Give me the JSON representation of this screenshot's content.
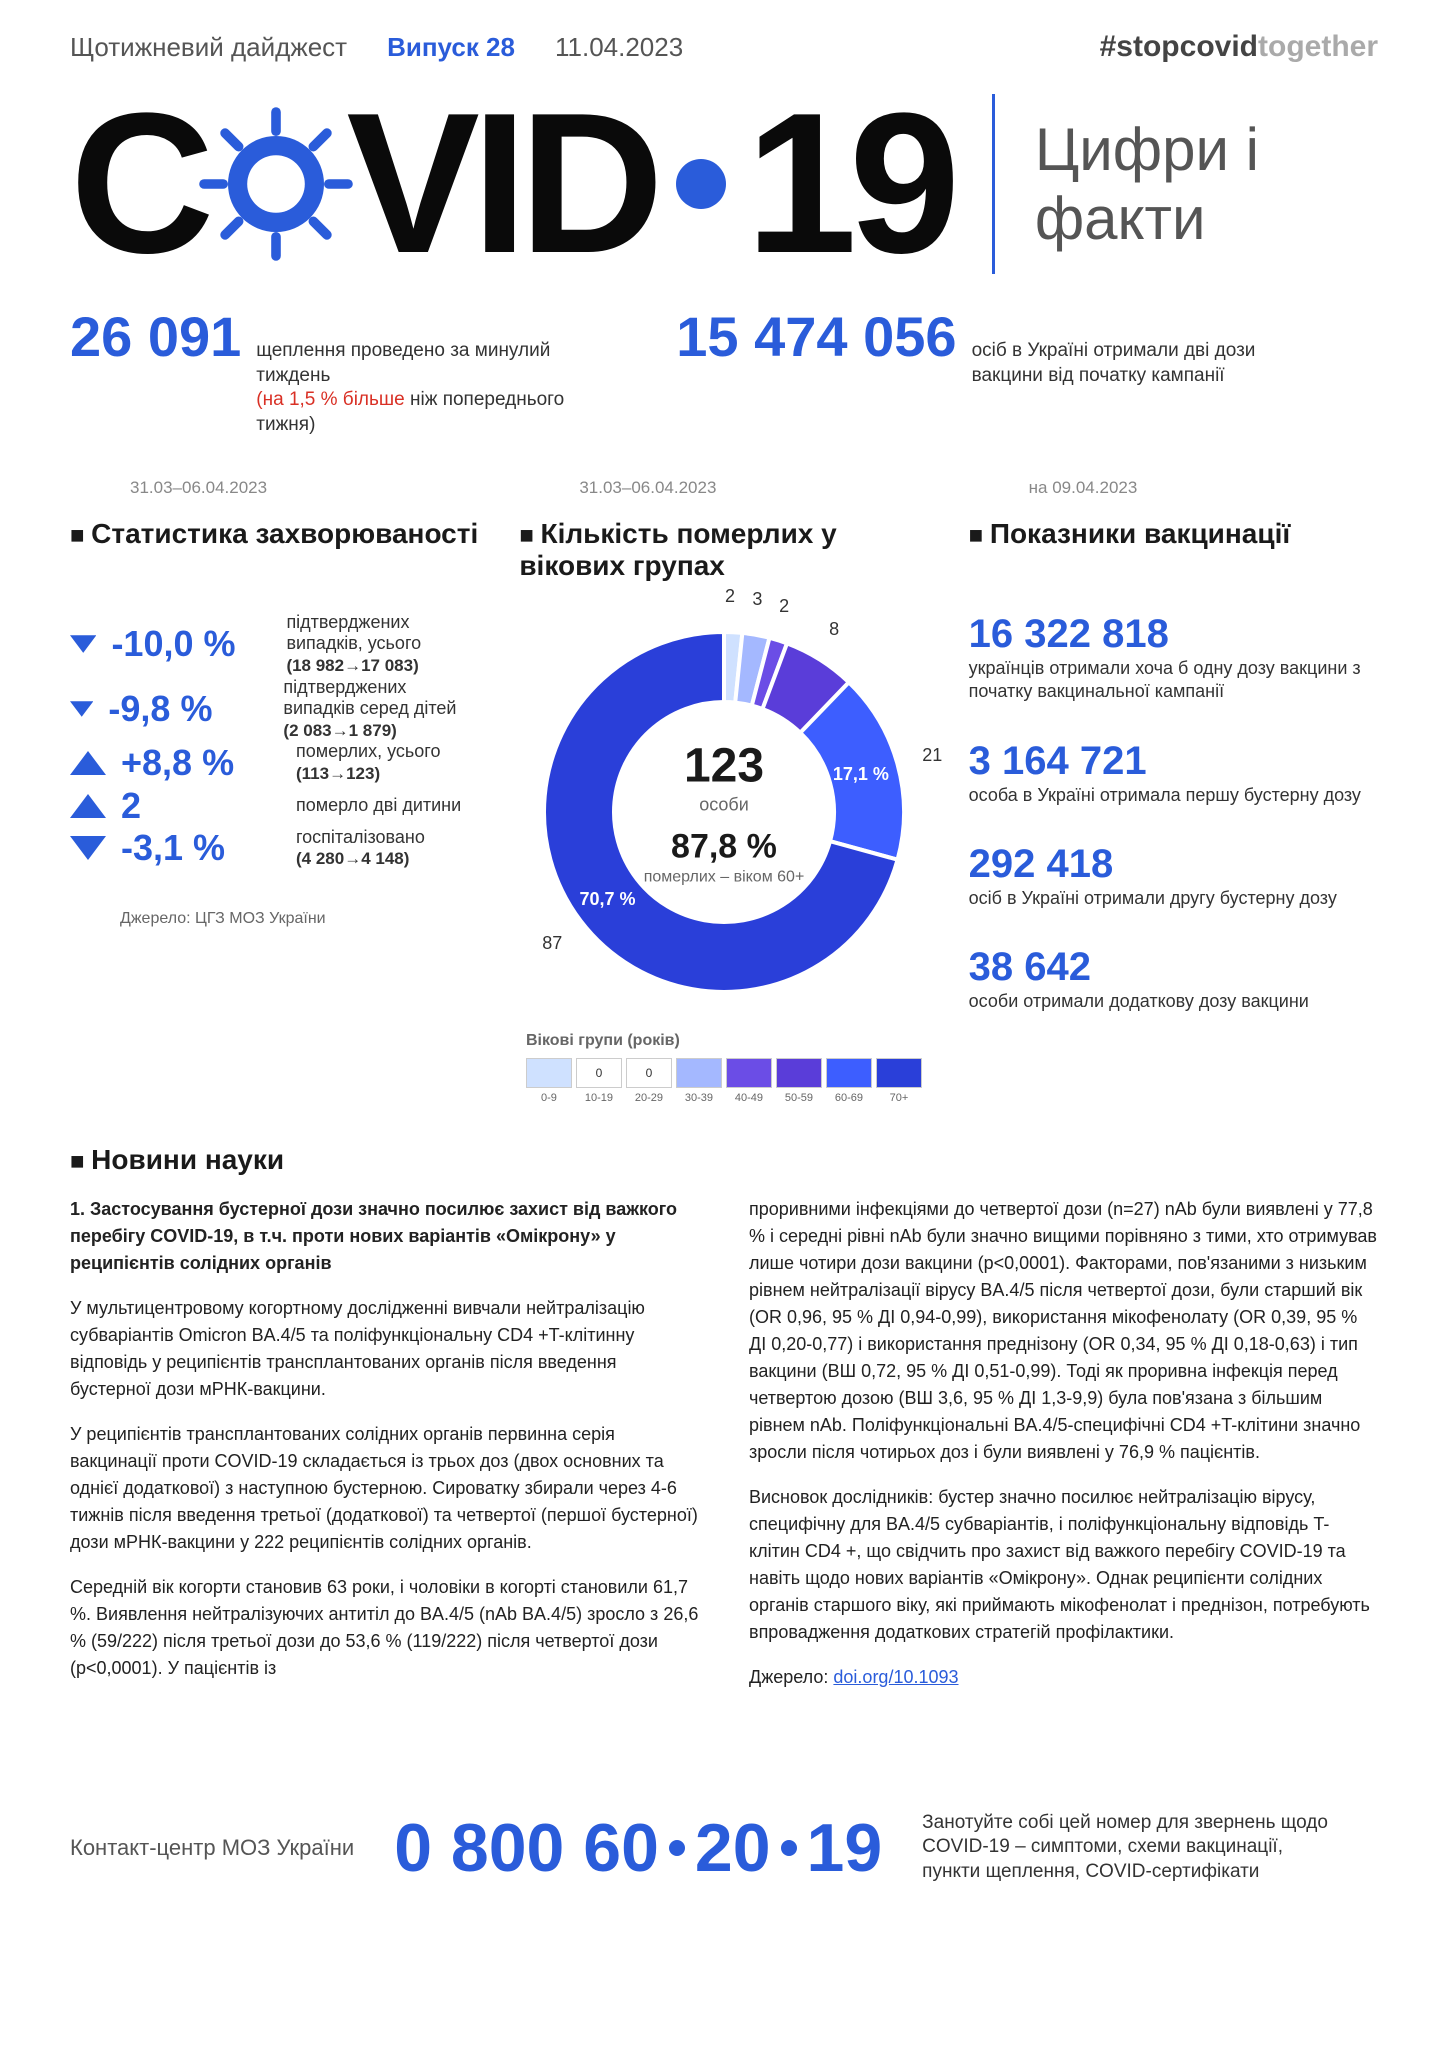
{
  "header": {
    "digest": "Щотижневий дайджест",
    "issue": "Випуск 28",
    "date": "11.04.2023",
    "hashtag_strong": "#stopcovid",
    "hashtag_light": "together"
  },
  "logo": {
    "text_c": "C",
    "text_vid": "VID",
    "text_19": "19",
    "gear_color": "#2a5cda",
    "subtitle": "Цифри і факти"
  },
  "top_stats": [
    {
      "number": "26 091",
      "text": "щеплення проведено за минулий тиждень",
      "subtext_red": "(на 1,5 % більше",
      "subtext": " ніж попереднього тижня)"
    },
    {
      "number": "15 474 056",
      "text": "осіб в Україні отримали дві дози вакцини від початку кампанії"
    }
  ],
  "section_dates": [
    "31.03–06.04.2023",
    "31.03–06.04.2023",
    "на 09.04.2023"
  ],
  "section_headers": [
    "Статистика захворюваності",
    "Кількість померлих у вікових групах",
    "Показники вакцинації"
  ],
  "morbidity": {
    "items": [
      {
        "direction": "down",
        "value": "-10,0 %",
        "color": "#2a5cda",
        "desc": "підтверджених випадків, усього",
        "sub": "(18 982→17 083)"
      },
      {
        "direction": "down",
        "value": "-9,8 %",
        "color": "#2a5cda",
        "desc": "підтверджених випадків серед дітей",
        "sub": "(2 083→1 879)"
      },
      {
        "direction": "up",
        "value": "+8,8 %",
        "color": "#2a5cda",
        "desc": "померлих, усього",
        "sub": "(113→123)"
      },
      {
        "direction": "up",
        "value": "2",
        "color": "#2a5cda",
        "desc": "померло дві дитини",
        "sub": ""
      },
      {
        "direction": "down",
        "value": "-3,1 %",
        "color": "#2a5cda",
        "desc": "госпіталізовано",
        "sub": "(4 280→4 148)"
      }
    ],
    "source": "Джерело: ЦГЗ МОЗ України"
  },
  "donut": {
    "total": "123",
    "total_label": "особи",
    "center_pct": "87,8 %",
    "center_sub": "померлих – віком 60+",
    "slices": [
      {
        "color": "#cfe1ff",
        "value": 2,
        "label": "2"
      },
      {
        "color": "#e8e8e8",
        "value": 0,
        "label": "0"
      },
      {
        "color": "#e8e8e8",
        "value": 0,
        "label": "0"
      },
      {
        "color": "#a4b8ff",
        "value": 3,
        "label": "3"
      },
      {
        "color": "#6b4de6",
        "value": 2,
        "label": "2"
      },
      {
        "color": "#5a3dd9",
        "value": 8,
        "label": "8"
      },
      {
        "color": "#3d5eff",
        "value": 21,
        "pct_label": "17,1 %",
        "label": "21"
      },
      {
        "color": "#2a3fd9",
        "value": 87,
        "pct_label": "70,7 %",
        "label": "87"
      }
    ],
    "legend_title": "Вікові групи (років)",
    "age_groups": [
      "0-9",
      "10-19",
      "20-29",
      "30-39",
      "40-49",
      "50-59",
      "60-69",
      "70+"
    ],
    "legend_colors": [
      "#cfe1ff",
      "#ffffff",
      "#ffffff",
      "#a4b8ff",
      "#6b4de6",
      "#5a3dd9",
      "#3d5eff",
      "#2a3fd9"
    ],
    "legend_vals": [
      "",
      "0",
      "0",
      "",
      "",
      "",
      "",
      ""
    ]
  },
  "vaccination": [
    {
      "number": "16 322 818",
      "text": "українців отримали хоча б одну дозу вакцини з початку вакцинальної кампанії"
    },
    {
      "number": "3 164 721",
      "text": "особа в Україні отримала першу бустерну дозу"
    },
    {
      "number": "292 418",
      "text": "осіб в Україні отримали другу бустерну дозу"
    },
    {
      "number": "38 642",
      "text": "особи отримали додаткову дозу вакцини"
    }
  ],
  "news": {
    "header": "Новини науки",
    "title": "1.  Застосування бустерної дози значно посилює захист від важкого перебігу COVID-19, в т.ч. проти нових варіантів «Омікрону» у реципієнтів солідних органів",
    "left": [
      "У мультицентровому когортному дослідженні вивчали нейтралізацію субваріантів Omicron BA.4/5 та поліфункціональну CD4 +T-клітинну відповідь у реципієнтів трансплантованих органів після введення бустерної дози мРНК-вакцини.",
      "У реципієнтів трансплантованих солідних органів первинна серія вакцинації проти COVID-19 складається із трьох доз (двох основних та однієї додаткової) з наступною бустерною. Сироватку збирали через 4-6 тижнів після введення третьої (додаткової) та четвертої (першої бустерної) дози мРНК-вакцини у 222 реципієнтів солідних органів.",
      "Середній вік когорти становив 63 роки, і чоловіки в когорті становили 61,7 %. Виявлення нейтралізуючих антитіл до BA.4/5 (nAb BA.4/5) зросло з 26,6 % (59/222) після третьої дози до 53,6 % (119/222) після четвертої дози (p<0,0001). У пацієнтів із"
    ],
    "right": [
      "проривними інфекціями до четвертої дози (n=27) nAb були виявлені у 77,8 % і середні рівні nAb були значно вищими порівняно з тими, хто отримував лише чотири дози вакцини (p<0,0001). Факторами, пов'язаними з низьким рівнем нейтралізації вірусу BA.4/5 після четвертої дози, були старший вік (OR 0,96, 95 % ДІ 0,94-0,99), використання мікофенолату (OR 0,39, 95 % ДІ 0,20-0,77) і використання преднізону (OR 0,34, 95 % ДІ 0,18-0,63) i тип вакцини (ВШ 0,72, 95 % ДІ 0,51-0,99). Тоді як проривна інфекція перед четвертою дозою (ВШ 3,6, 95 % ДІ 1,3-9,9) була пов'язана з більшим рівнем nAb. Поліфункціональні BA.4/5-специфічні CD4 +T-клітини значно зросли після чотирьох доз і були виявлені у 76,9 % пацієнтів.",
      "Висновок дослідників: бустер значно посилює нейтралізацію вірусу, специфічну для BA.4/5 субваріантів, і поліфункціональну відповідь T-клітин CD4 +, що свідчить про захист від важкого перебігу COVID-19 та навіть щодо нових варіантів «Омікрону». Однак реципієнти солідних органів старшого віку, які приймають мікофенолат і преднізон, потребують впровадження додаткових стратегій профілактики."
    ],
    "source_label": "Джерело:",
    "source_link": "doi.org/10.1093"
  },
  "footer": {
    "label": "Контакт-центр МОЗ України",
    "phone_parts": [
      "0 800 60",
      "20",
      "19"
    ],
    "desc": "Занотуйте собі цей номер для звернень щодо COVID-19 – симптоми, схеми вакцинації, пункти щеплення, COVID-сертифікати"
  },
  "colors": {
    "primary": "#2a5cda",
    "text": "#1a1a1a",
    "muted": "#888",
    "red": "#d93025"
  }
}
